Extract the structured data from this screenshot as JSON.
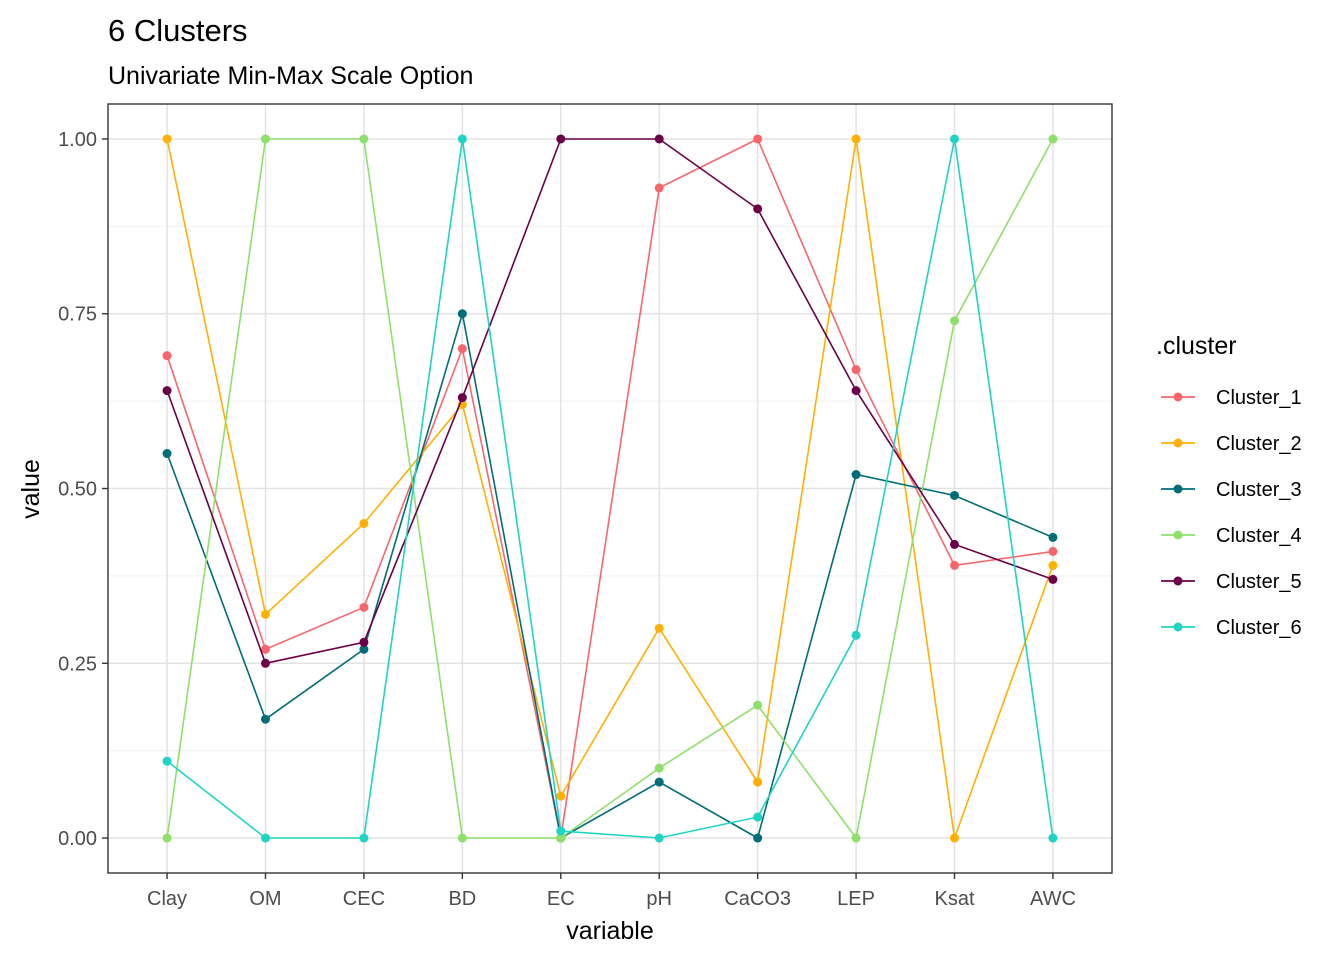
{
  "chart_data": {
    "type": "line",
    "title": "6 Clusters",
    "subtitle": "Univariate Min-Max Scale Option",
    "xlabel": "variable",
    "ylabel": "value",
    "categories": [
      "Clay",
      "OM",
      "CEC",
      "BD",
      "EC",
      "pH",
      "CaCO3",
      "LEP",
      "Ksat",
      "AWC"
    ],
    "ylim": [
      -0.05,
      1.05
    ],
    "yticks": [
      0.0,
      0.25,
      0.5,
      0.75,
      1.0
    ],
    "ytick_labels": [
      "0.00",
      "0.25",
      "0.50",
      "0.75",
      "1.00"
    ],
    "grid": true,
    "legend_title": ".cluster",
    "legend_position": "right",
    "series": [
      {
        "name": "Cluster_1",
        "color": "#F8666D",
        "values": [
          0.69,
          0.27,
          0.33,
          0.7,
          0.0,
          0.93,
          1.0,
          0.67,
          0.39,
          0.41
        ]
      },
      {
        "name": "Cluster_2",
        "color": "#FFB000",
        "values": [
          1.0,
          0.32,
          0.45,
          0.62,
          0.06,
          0.3,
          0.08,
          1.0,
          0.0,
          0.39
        ]
      },
      {
        "name": "Cluster_3",
        "color": "#006D77",
        "values": [
          0.55,
          0.17,
          0.27,
          0.75,
          0.0,
          0.08,
          0.0,
          0.52,
          0.49,
          0.43
        ]
      },
      {
        "name": "Cluster_4",
        "color": "#8FE06A",
        "values": [
          0.0,
          1.0,
          1.0,
          0.0,
          0.0,
          0.1,
          0.19,
          0.0,
          0.74,
          1.0
        ]
      },
      {
        "name": "Cluster_5",
        "color": "#6B0048",
        "values": [
          0.64,
          0.25,
          0.28,
          0.63,
          1.0,
          1.0,
          0.9,
          0.64,
          0.42,
          0.37
        ]
      },
      {
        "name": "Cluster_6",
        "color": "#1ED4C4",
        "values": [
          0.11,
          0.0,
          0.0,
          1.0,
          0.01,
          0.0,
          0.03,
          0.29,
          1.0,
          0.0
        ]
      }
    ]
  }
}
